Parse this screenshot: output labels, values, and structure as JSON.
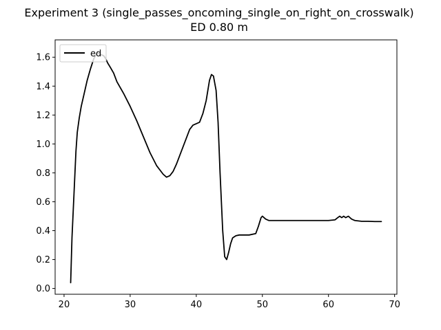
{
  "chart_data": {
    "type": "line",
    "title": "Experiment 3 (single_passes_oncoming_single_on_right_on_crosswalk)",
    "subtitle": "ED 0.80 m",
    "xlabel": "",
    "ylabel": "",
    "xlim": [
      18.65,
      70.35
    ],
    "ylim": [
      -0.04,
      1.72
    ],
    "xticks": [
      20,
      30,
      40,
      50,
      60,
      70
    ],
    "yticks": [
      0.0,
      0.2,
      0.4,
      0.6,
      0.8,
      1.0,
      1.2,
      1.4,
      1.6
    ],
    "grid": false,
    "legend": {
      "position": "top-left",
      "entries": [
        "ed"
      ]
    },
    "series": [
      {
        "name": "ed",
        "color": "#000000",
        "x": [
          21.0,
          21.2,
          21.5,
          21.8,
          22.0,
          22.3,
          22.6,
          23.0,
          23.5,
          24.0,
          24.5,
          25.0,
          25.5,
          26.0,
          26.3,
          26.6,
          27.0,
          27.5,
          28.0,
          29.0,
          30.0,
          31.0,
          32.0,
          33.0,
          34.0,
          35.0,
          35.5,
          36.0,
          36.5,
          37.0,
          37.5,
          38.0,
          38.5,
          39.0,
          39.5,
          40.0,
          40.5,
          41.0,
          41.5,
          42.0,
          42.3,
          42.6,
          43.0,
          43.3,
          43.6,
          44.0,
          44.3,
          44.6,
          44.9,
          45.2,
          45.5,
          46.0,
          46.5,
          47.0,
          48.0,
          49.0,
          49.4,
          49.8,
          50.0,
          50.5,
          51.0,
          52.0,
          55.0,
          58.0,
          60.0,
          61.0,
          61.4,
          61.7,
          62.0,
          62.3,
          62.6,
          63.0,
          63.5,
          64.0,
          65.0,
          66.0,
          67.0,
          68.0
        ],
        "y": [
          0.04,
          0.35,
          0.65,
          0.95,
          1.08,
          1.18,
          1.26,
          1.34,
          1.44,
          1.52,
          1.59,
          1.63,
          1.62,
          1.61,
          1.59,
          1.56,
          1.53,
          1.49,
          1.43,
          1.35,
          1.26,
          1.16,
          1.05,
          0.94,
          0.85,
          0.79,
          0.77,
          0.78,
          0.81,
          0.86,
          0.92,
          0.98,
          1.04,
          1.1,
          1.13,
          1.14,
          1.15,
          1.21,
          1.3,
          1.44,
          1.48,
          1.47,
          1.37,
          1.15,
          0.8,
          0.4,
          0.22,
          0.2,
          0.25,
          0.31,
          0.35,
          0.365,
          0.37,
          0.37,
          0.37,
          0.38,
          0.43,
          0.49,
          0.5,
          0.48,
          0.47,
          0.47,
          0.47,
          0.47,
          0.47,
          0.475,
          0.49,
          0.5,
          0.49,
          0.5,
          0.49,
          0.5,
          0.48,
          0.47,
          0.465,
          0.465,
          0.463,
          0.463
        ]
      }
    ]
  }
}
